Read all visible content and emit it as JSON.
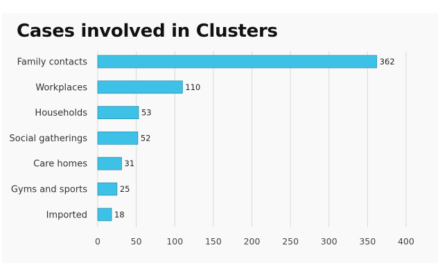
{
  "chart_data": {
    "type": "bar",
    "orientation": "horizontal",
    "title": "Cases involved in Clusters",
    "xlabel": "",
    "ylabel": "",
    "categories": [
      "Family contacts",
      "Workplaces",
      "Households",
      "Social gatherings",
      "Care homes",
      "Gyms and sports",
      "Imported"
    ],
    "values": [
      362,
      110,
      53,
      52,
      31,
      25,
      18
    ],
    "xlim": [
      0,
      400
    ],
    "xticks": [
      0,
      50,
      100,
      150,
      200,
      250,
      300,
      350,
      400
    ],
    "grid": "vertical",
    "data_labels": true,
    "legend": "none",
    "colors": {
      "bar_fill": "#3ec1e6",
      "bar_stroke": "#2a8fb0",
      "grid": "#d9d9d9",
      "background": "#f9f9f9"
    }
  }
}
